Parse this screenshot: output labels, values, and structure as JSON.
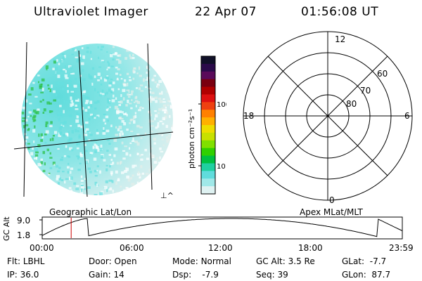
{
  "header": {
    "title": "Ultraviolet Imager",
    "date": "22 Apr 07",
    "time": "01:56:08 UT"
  },
  "colors": {
    "background": "#ffffff",
    "foreground": "#000000",
    "marker": "#cc0000",
    "intensity_low": "#e4eeea",
    "intensity_mid": "#66e0e0",
    "intensity_high": "#2ac040"
  },
  "image_panel": {
    "label": "Geographic Lat/Lon",
    "corner_mark": "⊥^"
  },
  "colorbar": {
    "unit_label": "photon cm⁻²s⁻¹",
    "ticks": [
      "100",
      "10"
    ],
    "colors": [
      "#101028",
      "#2a0a4a",
      "#5a0a5a",
      "#7a0010",
      "#b00000",
      "#dd1010",
      "#ee4010",
      "#ff8000",
      "#ffb000",
      "#eedd00",
      "#c8e000",
      "#80e000",
      "#30d000",
      "#00c040",
      "#20d0a0",
      "#60dcdc",
      "#a0e8e8",
      "#dff2f2"
    ]
  },
  "polar_panel": {
    "label": "Apex MLat/MLT",
    "mlt_labels": {
      "top": "12",
      "bottom": "0",
      "left": "18",
      "right": "6"
    },
    "lat_labels": [
      "60",
      "70",
      "80"
    ]
  },
  "altitude_plot": {
    "ylabel": "GC Alt",
    "ytick_max": "9.0",
    "ytick_min": "1.8",
    "xticks": [
      "00:00",
      "06:00",
      "12:00",
      "18:00",
      "23:59"
    ],
    "marker_time": "01:56"
  },
  "info": {
    "flt_label": "Flt:",
    "flt_value": "LBHL",
    "door_label": "Door:",
    "door_value": "Open",
    "mode_label": "Mode:",
    "mode_value": "Normal",
    "gcalt_label": "GC Alt:",
    "gcalt_value": "3.5 Re",
    "glat_label": "GLat:",
    "glat_value": "-7.7",
    "ip_label": "IP:",
    "ip_value": "36.0",
    "gain_label": "Gain:",
    "gain_value": "14",
    "dsp_label": "Dsp:",
    "dsp_value": "-7.9",
    "seq_label": "Seq:",
    "seq_value": "39",
    "glon_label": "GLon:",
    "glon_value": "87.7"
  }
}
